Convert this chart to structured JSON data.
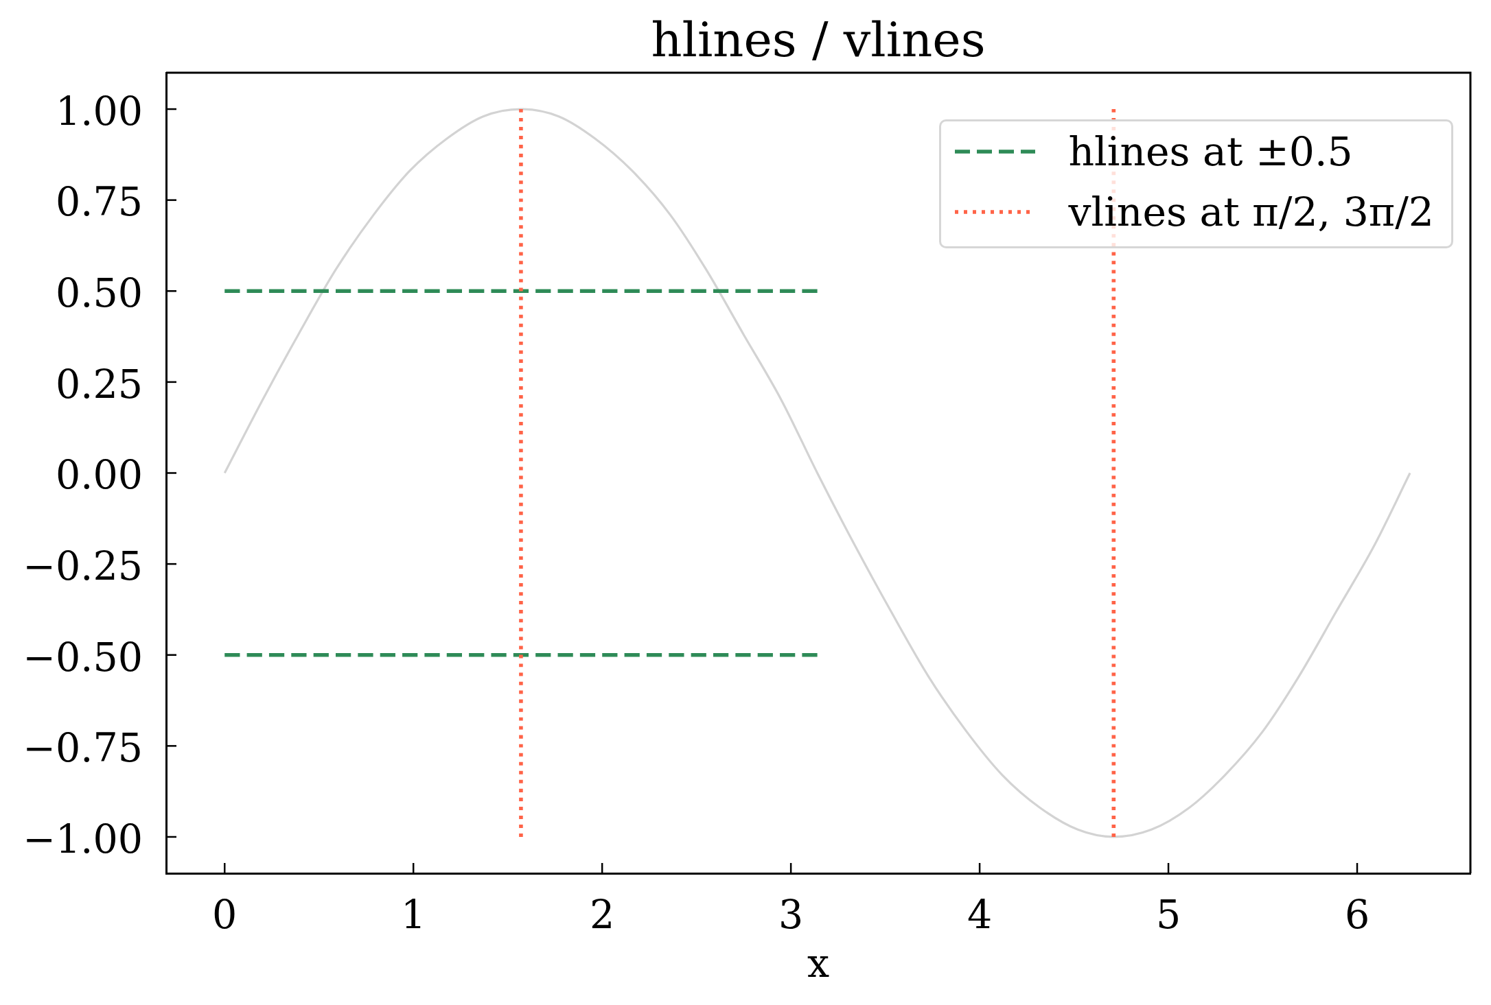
{
  "chart_data": {
    "type": "line",
    "title": "hlines / vlines",
    "xlabel": "x",
    "xlim": [
      -0.31,
      6.6
    ],
    "xticks": [
      0,
      1,
      2,
      3,
      4,
      5,
      6
    ],
    "ylim": [
      -1.1,
      1.1
    ],
    "yticks": [
      {
        "value": -1,
        "label": "−1.00"
      },
      {
        "value": -0.75,
        "label": "−0.75"
      },
      {
        "value": -0.5,
        "label": "−0.50"
      },
      {
        "value": -0.25,
        "label": "−0.25"
      },
      {
        "value": 0,
        "label": "0.00"
      },
      {
        "value": 0.25,
        "label": "0.25"
      },
      {
        "value": 0.5,
        "label": "0.50"
      },
      {
        "value": 0.75,
        "label": "0.75"
      },
      {
        "value": 1,
        "label": "1.00"
      }
    ],
    "legend": "top right",
    "series": [
      {
        "color": "#d3d3d3",
        "x": [
          0,
          0.2,
          0.39,
          0.59,
          0.79,
          0.98,
          1.18,
          1.37,
          1.57,
          1.77,
          1.96,
          2.16,
          2.36,
          2.55,
          2.75,
          2.95,
          3.14,
          3.34,
          3.53,
          3.73,
          3.93,
          4.12,
          4.32,
          4.52,
          4.71,
          4.91,
          5.11,
          5.3,
          5.5,
          5.69,
          5.89,
          6.09,
          6.28
        ],
        "values": [
          0,
          0.2,
          0.38,
          0.56,
          0.71,
          0.83,
          0.92,
          0.98,
          1,
          0.98,
          0.92,
          0.83,
          0.71,
          0.56,
          0.38,
          0.2,
          0,
          -0.2,
          -0.38,
          -0.56,
          -0.71,
          -0.83,
          -0.92,
          -0.98,
          -1,
          -0.98,
          -0.92,
          -0.83,
          -0.71,
          -0.56,
          -0.38,
          -0.2,
          0
        ]
      },
      {
        "name": "hlines at ±0.5",
        "color": "#2e8b57",
        "line_style": "dashed",
        "x": [
          0,
          3.14
        ],
        "values": [
          0.5,
          0.5
        ]
      },
      {
        "color": "#2e8b57",
        "line_style": "dashed",
        "x": [
          0,
          3.14
        ],
        "values": [
          -0.5,
          -0.5
        ]
      },
      {
        "name": "vlines at π/2, 3π/2",
        "color": "#ff6347",
        "line_style": "dotted",
        "x": [
          1.57,
          1.57
        ],
        "values": [
          -1,
          1
        ]
      },
      {
        "color": "#ff6347",
        "line_style": "dotted",
        "x": [
          4.71,
          4.71
        ],
        "values": [
          -1,
          1
        ]
      }
    ]
  }
}
